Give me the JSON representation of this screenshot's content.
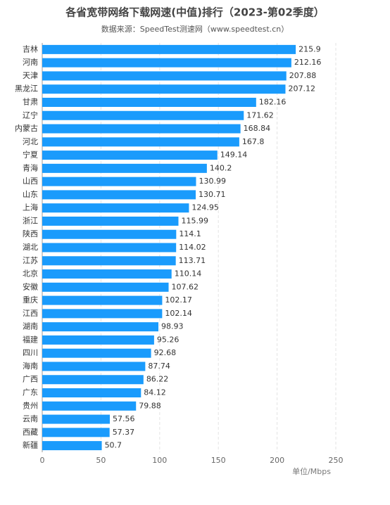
{
  "chart_data": {
    "type": "bar",
    "orientation": "horizontal",
    "title": "各省宽带网络下载网速(中值)排行（2023-第02季度）",
    "subtitle": "数据来源：SpeedTest测速网（www.speedtest.cn）",
    "x_axis_label": "单位/Mbps",
    "categories": [
      "吉林",
      "河南",
      "天津",
      "黑龙江",
      "甘肃",
      "辽宁",
      "内蒙古",
      "河北",
      "宁夏",
      "青海",
      "山西",
      "山东",
      "上海",
      "浙江",
      "陕西",
      "湖北",
      "江苏",
      "北京",
      "安徽",
      "重庆",
      "江西",
      "湖南",
      "福建",
      "四川",
      "海南",
      "广西",
      "广东",
      "贵州",
      "云南",
      "西藏",
      "新疆"
    ],
    "values": [
      215.9,
      212.16,
      207.88,
      207.12,
      182.16,
      171.62,
      168.84,
      167.8,
      149.14,
      140.2,
      130.99,
      130.71,
      124.95,
      115.99,
      114.1,
      114.02,
      113.71,
      110.14,
      107.62,
      102.17,
      102.14,
      98.93,
      95.26,
      92.68,
      87.74,
      86.22,
      84.12,
      79.88,
      57.56,
      57.37,
      50.7
    ],
    "color": "#1a9bfc",
    "xlim": [
      0,
      250
    ],
    "xticks": [
      0,
      50,
      100,
      150,
      200,
      250
    ],
    "grid": true
  }
}
